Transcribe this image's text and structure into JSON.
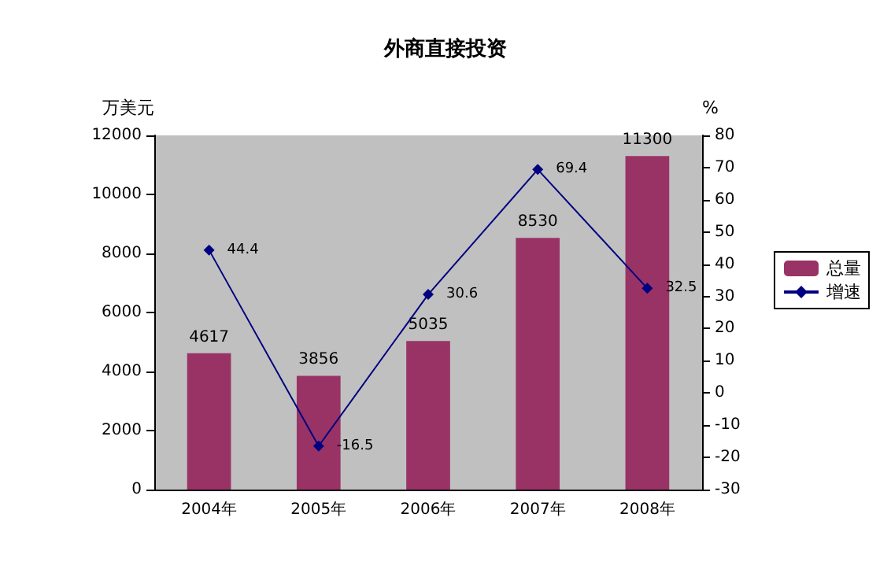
{
  "chart_data": {
    "type": "bar",
    "title": "外商直接投资",
    "ylabel": "万美元",
    "y2label": "%",
    "categories": [
      "2004年",
      "2005年",
      "2006年",
      "2007年",
      "2008年"
    ],
    "series": [
      {
        "name": "总量",
        "color": "#993366",
        "values": [
          4617,
          3856,
          5035,
          8530,
          11300
        ]
      },
      {
        "name": "增速",
        "type": "line",
        "axis": "y2",
        "color": "#000080",
        "values": [
          44.4,
          -16.5,
          30.6,
          69.4,
          32.5
        ]
      }
    ],
    "ylim": [
      0,
      12000
    ],
    "yticks": [
      0,
      2000,
      4000,
      6000,
      8000,
      10000,
      12000
    ],
    "y2lim": [
      -30,
      80
    ],
    "y2ticks": [
      -30,
      -20,
      -10,
      0,
      10,
      20,
      30,
      40,
      50,
      60,
      70,
      80
    ],
    "data_labels": true,
    "legend": "right",
    "grid": false,
    "marker": "diamond",
    "line_style": "solid"
  }
}
